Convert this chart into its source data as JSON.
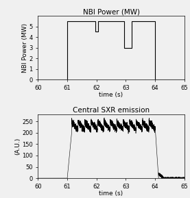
{
  "nbi_time": [
    60,
    61.0,
    61.0,
    61.95,
    61.95,
    62.05,
    62.05,
    62.95,
    62.95,
    63.2,
    63.2,
    64.0,
    64.0,
    65
  ],
  "nbi_power": [
    0,
    0,
    5.5,
    5.5,
    4.5,
    4.5,
    5.5,
    5.5,
    3.0,
    3.0,
    5.5,
    5.5,
    0,
    0
  ],
  "nbi_ylabel": "NBI Power (MW)",
  "nbi_title": "NBI Power (MW)",
  "nbi_ylim": [
    0,
    6
  ],
  "nbi_yticks": [
    0,
    1,
    2,
    3,
    4,
    5
  ],
  "sxr_title": "Central SXR emission",
  "sxr_ylabel": "(A.U.)",
  "sxr_ylim": [
    0,
    280
  ],
  "sxr_yticks": [
    0,
    50,
    100,
    150,
    200,
    250
  ],
  "xlabel": "time (s)",
  "xlim": [
    60,
    65
  ],
  "xticks": [
    60,
    61,
    62,
    63,
    64,
    65
  ],
  "bg_color": "#f0f0f0",
  "line_color": "#000000",
  "title_fontsize": 7.5,
  "tick_fontsize": 6,
  "label_fontsize": 6.5
}
